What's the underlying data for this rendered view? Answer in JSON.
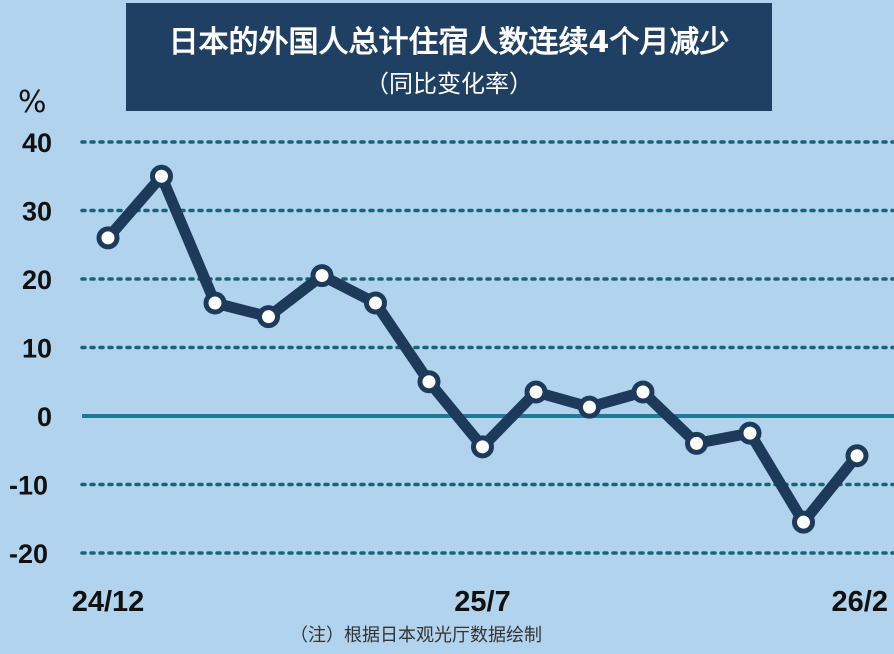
{
  "chart_data": {
    "type": "line",
    "title": "日本的外国人总计住宿人数连续4个月减少",
    "subtitle": "（同比变化率）",
    "ylabel": "%",
    "ylim": [
      -20,
      40
    ],
    "yticks": [
      "40",
      "30",
      "20",
      "10",
      "0",
      "-10",
      "-20"
    ],
    "x_tick_labels": [
      "24/12",
      "25/7",
      "26/2"
    ],
    "x": [
      "24/12",
      "25/1",
      "25/2",
      "25/3",
      "25/4",
      "25/5",
      "25/6",
      "25/7",
      "25/8",
      "25/9",
      "25/10",
      "25/11",
      "25/12",
      "26/1",
      "26/2"
    ],
    "values": [
      26,
      35,
      16.5,
      14.5,
      20.5,
      16.5,
      5,
      -4.5,
      3.5,
      1.3,
      3.5,
      -4,
      -2.5,
      -15.5,
      -5.8
    ],
    "grid": true,
    "note": "（注）根据日本观光厅数据绘制"
  },
  "colors": {
    "background": "#b2d3ee",
    "title_box": "#1f3f63",
    "line": "#1e3a5b",
    "grid": "#17647a"
  }
}
